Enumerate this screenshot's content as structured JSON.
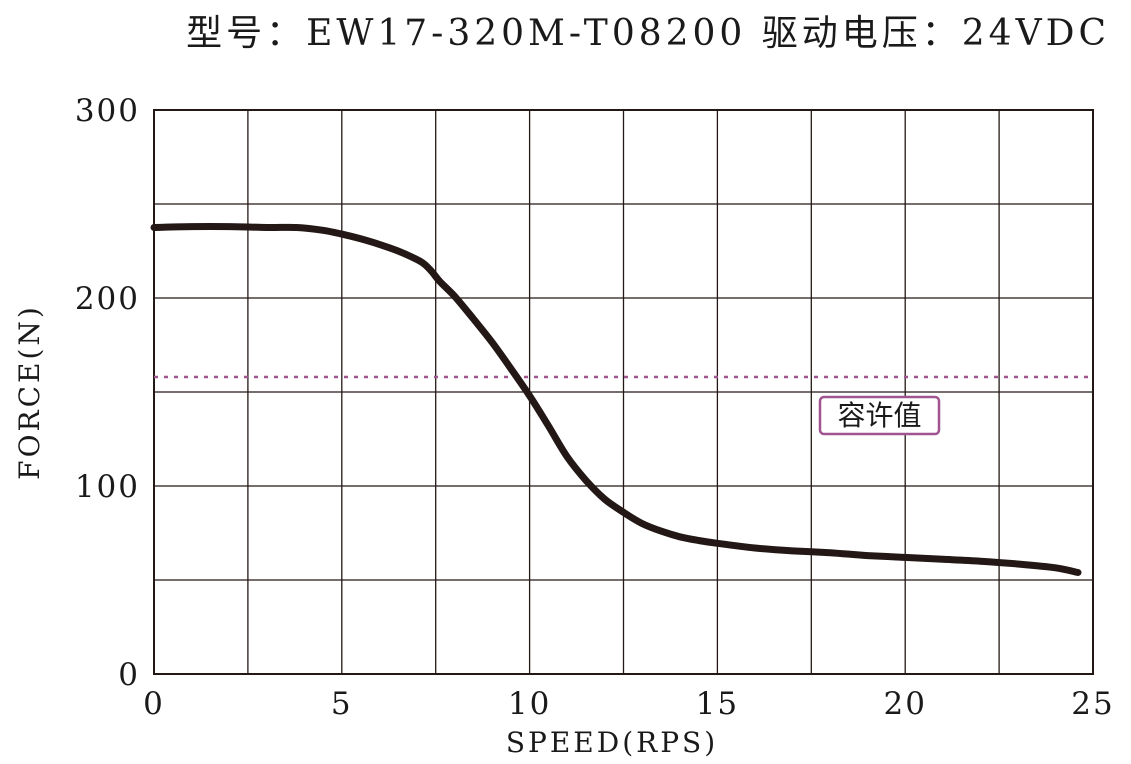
{
  "chart_data": {
    "type": "line",
    "title": "型号：EW17-320M-T08200   驱动电压：24VDC",
    "xlabel": "SPEED(RPS)",
    "ylabel": "FORCE(N)",
    "xlim": [
      0,
      25
    ],
    "ylim": [
      0,
      300
    ],
    "x_ticks": [
      0,
      5,
      10,
      15,
      20,
      25
    ],
    "y_ticks": [
      0,
      100,
      200,
      300
    ],
    "x_tick_labels": [
      "0",
      "5",
      "10",
      "15",
      "20",
      "25"
    ],
    "y_tick_labels": [
      "0",
      "100",
      "200",
      "300"
    ],
    "x_grid_step": 2.5,
    "y_grid_step": 50,
    "grid": true,
    "series": [
      {
        "color": "#231815",
        "x": [
          0,
          1,
          2,
          3,
          3.8,
          4.5,
          5,
          5.5,
          6,
          6.5,
          7,
          7.2,
          7.4,
          7.6,
          8,
          8.5,
          9,
          9.5,
          10,
          10.5,
          11,
          11.5,
          12,
          12.5,
          13,
          13.5,
          14,
          14.5,
          15,
          16,
          17,
          18,
          19,
          20,
          21,
          22,
          23,
          24,
          24.6
        ],
        "y": [
          237.5,
          238,
          238,
          237.5,
          237.5,
          236,
          234,
          231.5,
          228.5,
          225,
          220.5,
          218,
          214,
          209,
          201,
          189,
          176.5,
          162.5,
          148,
          132,
          115.5,
          103,
          93,
          86,
          80,
          76,
          73,
          71,
          69.5,
          67,
          65.5,
          64.5,
          63,
          62,
          61,
          60,
          58.5,
          56.5,
          54
        ]
      }
    ],
    "reference_line": {
      "y": 158,
      "color": "#a05590",
      "label": "容许值"
    }
  }
}
